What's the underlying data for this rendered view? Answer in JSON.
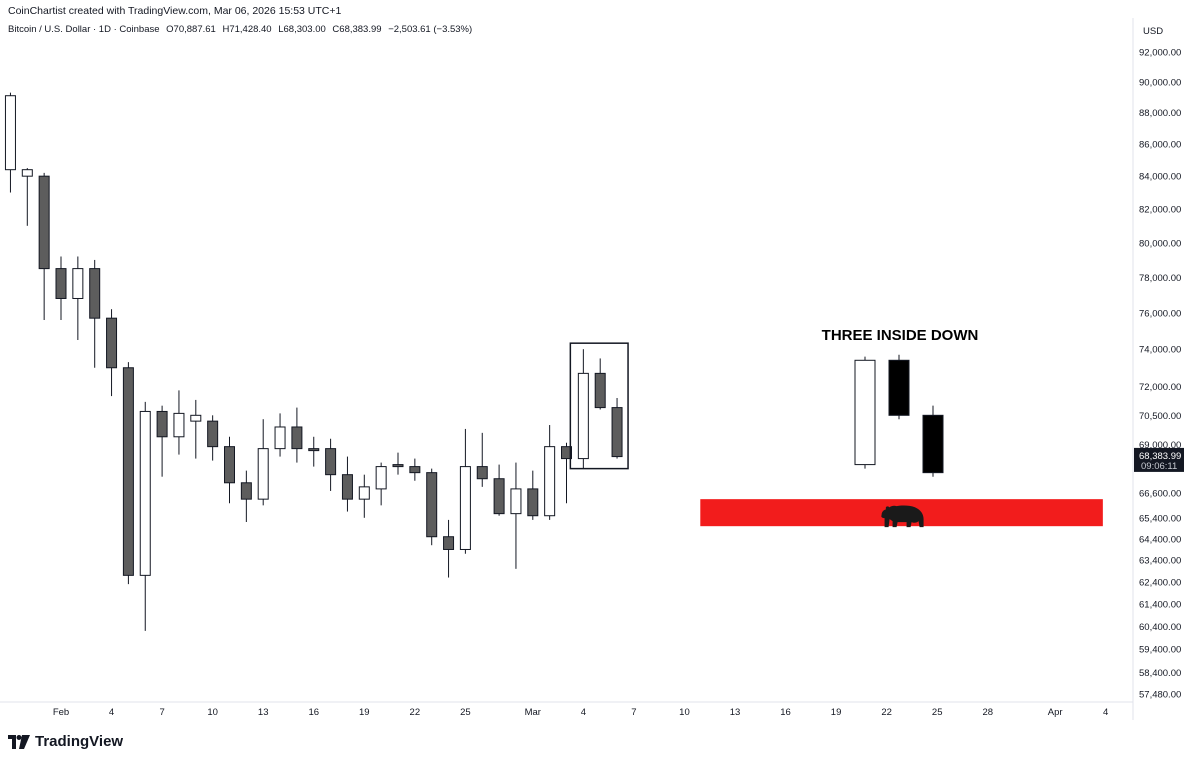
{
  "header": {
    "attribution": "CoinChartist created with TradingView.com, Mar 06, 2026 15:53 UTC+1",
    "symbol": "Bitcoin / U.S. Dollar · 1D · Coinbase",
    "open": "O70,887.61",
    "high": "H71,428.40",
    "low": "L68,303.00",
    "close": "C68,383.99",
    "change": "−2,503.61 (−3.53%)"
  },
  "footer": {
    "brand": "TradingView"
  },
  "colors": {
    "bearish_candle": "#5d5d5d",
    "bullish_candle": "#ffffff",
    "support_zone": "#f21c1c",
    "price_label_bg": "#131722",
    "grid_line": "#e0e3eb"
  },
  "icons": {
    "bear": "bear-silhouette-icon",
    "logo": "tradingview-logo-icon"
  },
  "chart_data": {
    "type": "candlestick",
    "currency": "USD",
    "timeframe": "1D",
    "y_axis": {
      "label": "USD",
      "ticks": [
        "92,000.00",
        "90,000.00",
        "88,000.00",
        "86,000.00",
        "84,000.00",
        "82,000.00",
        "80,000.00",
        "78,000.00",
        "76,000.00",
        "74,000.00",
        "72,000.00",
        "70,500.00",
        "69,000.00",
        "66,600.00",
        "65,400.00",
        "64,400.00",
        "63,400.00",
        "62,400.00",
        "61,400.00",
        "60,400.00",
        "59,400.00",
        "58,400.00",
        "57,480.00"
      ],
      "log_scale": true,
      "range": [
        57000,
        93500
      ]
    },
    "x_axis": {
      "ticks": [
        "Feb",
        "4",
        "7",
        "10",
        "13",
        "16",
        "19",
        "22",
        "25",
        "Mar",
        "4",
        "7",
        "10",
        "13",
        "16",
        "19",
        "22",
        "25",
        "28",
        "Apr",
        "4"
      ],
      "tick_dates": [
        "2026-02-01",
        "2026-02-04",
        "2026-02-07",
        "2026-02-10",
        "2026-02-13",
        "2026-02-16",
        "2026-02-19",
        "2026-02-22",
        "2026-02-25",
        "2026-03-01",
        "2026-03-04",
        "2026-03-07",
        "2026-03-10",
        "2026-03-13",
        "2026-03-16",
        "2026-03-19",
        "2026-03-22",
        "2026-03-25",
        "2026-03-28",
        "2026-04-01",
        "2026-04-04"
      ]
    },
    "current_price": {
      "value": "68,383.99",
      "countdown": "09:06:11"
    },
    "candles": [
      {
        "date": "2026-01-29",
        "o": 84400,
        "h": 89300,
        "l": 83000,
        "c": 89100
      },
      {
        "date": "2026-01-30",
        "o": 84000,
        "h": 84500,
        "l": 81000,
        "c": 84400
      },
      {
        "date": "2026-01-31",
        "o": 84000,
        "h": 84200,
        "l": 75600,
        "c": 78500
      },
      {
        "date": "2026-02-01",
        "o": 78500,
        "h": 79200,
        "l": 75600,
        "c": 76800
      },
      {
        "date": "2026-02-02",
        "o": 76800,
        "h": 79200,
        "l": 74500,
        "c": 78500
      },
      {
        "date": "2026-02-03",
        "o": 78500,
        "h": 79000,
        "l": 73000,
        "c": 75700
      },
      {
        "date": "2026-02-04",
        "o": 75700,
        "h": 76200,
        "l": 71500,
        "c": 73000
      },
      {
        "date": "2026-02-05",
        "o": 73000,
        "h": 73300,
        "l": 62300,
        "c": 62700
      },
      {
        "date": "2026-02-06",
        "o": 62700,
        "h": 71200,
        "l": 60200,
        "c": 70700
      },
      {
        "date": "2026-02-07",
        "o": 70700,
        "h": 71000,
        "l": 67400,
        "c": 69400
      },
      {
        "date": "2026-02-08",
        "o": 69400,
        "h": 71800,
        "l": 68500,
        "c": 70600
      },
      {
        "date": "2026-02-09",
        "o": 70200,
        "h": 71300,
        "l": 68300,
        "c": 70500
      },
      {
        "date": "2026-02-10",
        "o": 70200,
        "h": 70500,
        "l": 68200,
        "c": 68900
      },
      {
        "date": "2026-02-11",
        "o": 68900,
        "h": 69400,
        "l": 66100,
        "c": 67100
      },
      {
        "date": "2026-02-12",
        "o": 67100,
        "h": 67700,
        "l": 65200,
        "c": 66300
      },
      {
        "date": "2026-02-13",
        "o": 66300,
        "h": 70300,
        "l": 66000,
        "c": 68800
      },
      {
        "date": "2026-02-14",
        "o": 68800,
        "h": 70600,
        "l": 68400,
        "c": 69900
      },
      {
        "date": "2026-02-15",
        "o": 69900,
        "h": 70900,
        "l": 68100,
        "c": 68800
      },
      {
        "date": "2026-02-16",
        "o": 68800,
        "h": 69400,
        "l": 67900,
        "c": 68700
      },
      {
        "date": "2026-02-17",
        "o": 68800,
        "h": 69300,
        "l": 66700,
        "c": 67500
      },
      {
        "date": "2026-02-18",
        "o": 67500,
        "h": 68400,
        "l": 65700,
        "c": 66300
      },
      {
        "date": "2026-02-19",
        "o": 66300,
        "h": 67500,
        "l": 65400,
        "c": 66900
      },
      {
        "date": "2026-02-20",
        "o": 66800,
        "h": 68100,
        "l": 66000,
        "c": 67900
      },
      {
        "date": "2026-02-21",
        "o": 68000,
        "h": 68600,
        "l": 67500,
        "c": 67900
      },
      {
        "date": "2026-02-22",
        "o": 67900,
        "h": 68300,
        "l": 67200,
        "c": 67600
      },
      {
        "date": "2026-02-23",
        "o": 67600,
        "h": 67800,
        "l": 64100,
        "c": 64500
      },
      {
        "date": "2026-02-24",
        "o": 64500,
        "h": 65300,
        "l": 62600,
        "c": 63900
      },
      {
        "date": "2026-02-25",
        "o": 63900,
        "h": 69800,
        "l": 63700,
        "c": 67900
      },
      {
        "date": "2026-02-26",
        "o": 67900,
        "h": 69600,
        "l": 66900,
        "c": 67300
      },
      {
        "date": "2026-02-27",
        "o": 67300,
        "h": 68000,
        "l": 65500,
        "c": 65600
      },
      {
        "date": "2026-02-28",
        "o": 65600,
        "h": 68100,
        "l": 63000,
        "c": 66800
      },
      {
        "date": "2026-03-01",
        "o": 66800,
        "h": 67700,
        "l": 65300,
        "c": 65500
      },
      {
        "date": "2026-03-02",
        "o": 65500,
        "h": 70000,
        "l": 65300,
        "c": 68900
      },
      {
        "date": "2026-03-03",
        "o": 68900,
        "h": 69100,
        "l": 66100,
        "c": 68300
      },
      {
        "date": "2026-03-04",
        "o": 68300,
        "h": 74000,
        "l": 67800,
        "c": 72700
      },
      {
        "date": "2026-03-05",
        "o": 72700,
        "h": 73500,
        "l": 70800,
        "c": 70900
      },
      {
        "date": "2026-03-06",
        "o": 70900,
        "h": 71400,
        "l": 68300,
        "c": 68400
      }
    ],
    "highlight_box": {
      "from": "2026-03-04",
      "to": "2026-03-06"
    },
    "annotations": [
      {
        "type": "text",
        "text": "THREE INSIDE DOWN"
      },
      {
        "type": "pattern_illustration",
        "name": "three-inside-down",
        "candles": [
          {
            "o": 68000,
            "h": 73600,
            "l": 67800,
            "c": 73400
          },
          {
            "o": 73400,
            "h": 73700,
            "l": 70300,
            "c": 70500
          },
          {
            "o": 70500,
            "h": 71000,
            "l": 67400,
            "c": 67600
          }
        ]
      },
      {
        "type": "zone",
        "low": 65000,
        "high": 66300,
        "from": "2026-03-11",
        "to": "2026-04-03",
        "icon": "bear-silhouette-icon"
      }
    ],
    "grid": false,
    "legend": "none"
  }
}
